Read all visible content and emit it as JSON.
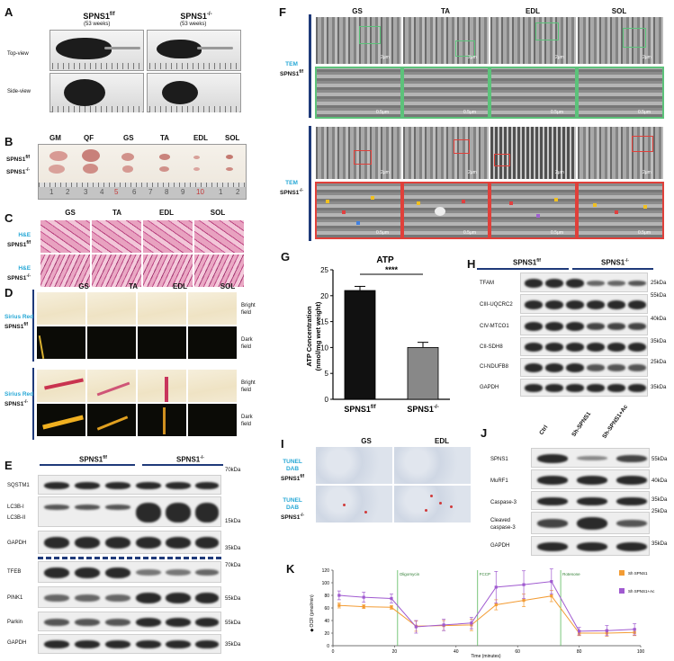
{
  "panels": {
    "A": {
      "label": "A",
      "col1": "SPNS1",
      "col1_sup": "f/f",
      "col1_sub": "(53 weeks)",
      "col2": "SPNS1",
      "col2_sup": "-/-",
      "col2_sub": "(53 weeks)",
      "rows": [
        "Top-view",
        "Side-view"
      ]
    },
    "B": {
      "label": "B",
      "cols": [
        "GM",
        "QF",
        "GS",
        "TA",
        "EDL",
        "SOL"
      ],
      "row1": "SPNS1",
      "row1_sup": "f/f",
      "row2": "SPNS1",
      "row2_sup": "-/-",
      "ruler": [
        "1",
        "2",
        "3",
        "4",
        "5",
        "6",
        "7",
        "8",
        "9",
        "10",
        "1",
        "2"
      ]
    },
    "C": {
      "label": "C",
      "cols": [
        "GS",
        "TA",
        "EDL",
        "SOL"
      ],
      "stain": "H&E",
      "row1": "SPNS1",
      "row1_sup": "f/f",
      "row2": "SPNS1",
      "row2_sup": "-/-"
    },
    "D": {
      "label": "D",
      "cols": [
        "GS",
        "TA",
        "EDL",
        "SOL"
      ],
      "stain": "Sirius Red",
      "row1": "SPNS1",
      "row1_sup": "f/f",
      "row2": "SPNS1",
      "row2_sup": "-/-",
      "bright": [
        "Bright",
        "field"
      ],
      "dark": [
        "Dark",
        "field"
      ]
    },
    "E": {
      "label": "E",
      "group1": "SPNS1",
      "group1_sup": "f/f",
      "group2": "SPNS1",
      "group2_sup": "-/-",
      "proteins": [
        "SQSTM1",
        "LC3B-I",
        "LC3B-II",
        "GAPDH",
        "TFEB",
        "PINK1",
        "Parkin",
        "GAPDH"
      ],
      "markers": [
        "70kDa",
        "15kDa",
        "35kDa",
        "70kDa",
        "55kDa",
        "55kDa",
        "35kDa"
      ]
    },
    "F": {
      "label": "F",
      "cols": [
        "GS",
        "TA",
        "EDL",
        "SOL"
      ],
      "method": "TEM",
      "row1": "SPNS1",
      "row1_sup": "f/f",
      "row2": "SPNS1",
      "row2_sup": "-/-",
      "scale_top": "2μm",
      "scale_zoom": "0.5μm",
      "zoom_color_top": "#5cc27a",
      "zoom_color_bottom": "#e0403a"
    },
    "G": {
      "label": "G",
      "chart_title": "ATP",
      "significance": "****"
    },
    "H": {
      "label": "H",
      "group1": "SPNS1",
      "group1_sup": "f/f",
      "group2": "SPNS1",
      "group2_sup": "-/-",
      "proteins": [
        "TFAM",
        "CIII-UQCRC2",
        "CIV-MTCO1",
        "CII-SDH8",
        "CI-NDUFB8",
        "GAPDH"
      ],
      "markers": [
        "25kDa",
        "55kDa",
        "40kDa",
        "35kDa",
        "25kDa",
        "35kDa"
      ]
    },
    "I": {
      "label": "I",
      "cols": [
        "GS",
        "EDL"
      ],
      "method": [
        "TUNEL",
        "DAB"
      ],
      "row1": "SPNS1",
      "row1_sup": "f/f",
      "row2": "SPNS1",
      "row2_sup": "-/-"
    },
    "J": {
      "label": "J",
      "cols": [
        "Ctrl",
        "Sh-SPNS1",
        "Sh-SPNS1+Ac"
      ],
      "proteins": [
        "SPNS1",
        "MuRF1",
        "Caspase-3",
        "Cleaved caspase-3",
        "GAPDH"
      ],
      "markers": [
        "55kDa",
        "40kDa",
        "35kDa",
        "25kDa",
        "35kDa"
      ]
    },
    "K": {
      "label": "K",
      "annotations": [
        "Oligomycin",
        "FCCP",
        "Rotenone"
      ],
      "legend": [
        "Sh SPNS1",
        "Sh SPNS1+Ac"
      ],
      "colors": {
        "sh": "#f39c34",
        "shac": "#a05ad0",
        "injection": "#58b85a"
      }
    }
  },
  "chart_data": [
    {
      "type": "bar",
      "title": "ATP",
      "categories": [
        "SPNS1f/f",
        "SPNS1-/-"
      ],
      "values": [
        21,
        10
      ],
      "errors": [
        0.8,
        1.0
      ],
      "ylabel": "ATP Concentration (nmol/mg wet weight)",
      "ylim": [
        0,
        25
      ],
      "yticks": [
        0,
        5,
        10,
        15,
        20,
        25
      ],
      "colors": [
        "#111111",
        "#888888"
      ]
    },
    {
      "type": "line",
      "xlabel": "Time (minutes)",
      "ylabel": "OCR (pmol/min)",
      "xlim": [
        0,
        100
      ],
      "ylim": [
        0,
        120
      ],
      "xticks": [
        0,
        20,
        40,
        60,
        80,
        100
      ],
      "yticks": [
        0,
        20,
        40,
        60,
        80,
        100,
        120
      ],
      "injections": [
        {
          "label": "Oligomycin",
          "x": 21
        },
        {
          "label": "FCCP",
          "x": 47
        },
        {
          "label": "Rotenone",
          "x": 74
        }
      ],
      "series": [
        {
          "name": "Sh SPNS1",
          "color": "#f39c34",
          "x": [
            2,
            10,
            19,
            27,
            36,
            45,
            53,
            62,
            71,
            80,
            89,
            98
          ],
          "y": [
            64,
            62,
            61,
            31,
            32,
            33,
            65,
            72,
            79,
            20,
            20,
            21
          ],
          "err": [
            4,
            3,
            3,
            8,
            8,
            9,
            8,
            10,
            9,
            4,
            5,
            5
          ]
        },
        {
          "name": "Sh SPNS1+Ac",
          "color": "#a05ad0",
          "x": [
            2,
            10,
            19,
            27,
            36,
            45,
            53,
            62,
            71,
            80,
            89,
            98
          ],
          "y": [
            80,
            77,
            75,
            30,
            33,
            36,
            93,
            97,
            102,
            23,
            24,
            26
          ],
          "err": [
            7,
            8,
            7,
            10,
            9,
            9,
            25,
            22,
            20,
            6,
            8,
            9
          ]
        }
      ]
    }
  ]
}
